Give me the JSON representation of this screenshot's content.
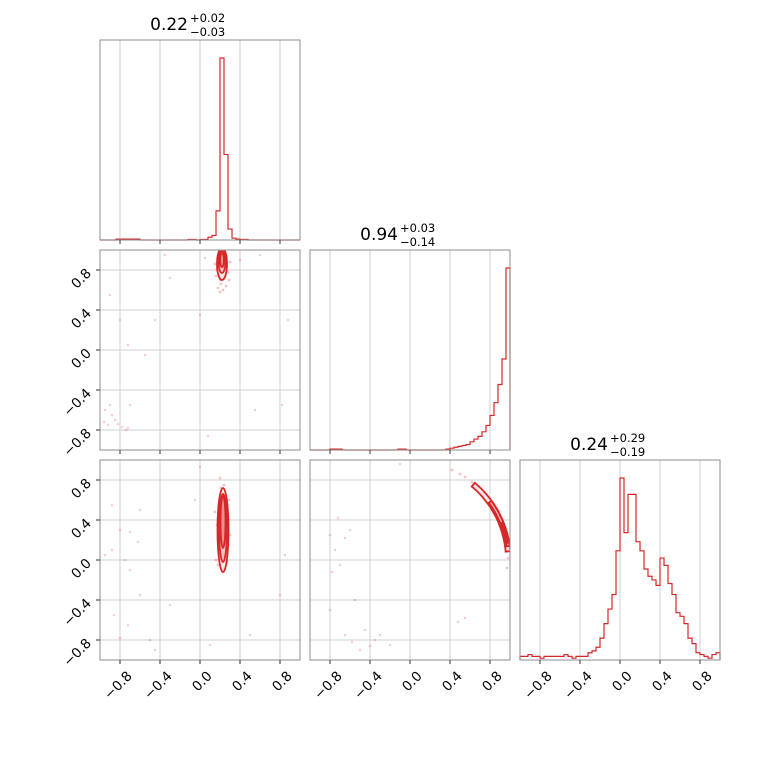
{
  "chart_data": {
    "type": "corner",
    "color": "#d62728",
    "axis_range": [
      -1.0,
      1.0
    ],
    "ticks": [
      -0.8,
      -0.4,
      0.0,
      0.4,
      0.8
    ],
    "tick_labels": [
      "−0.8",
      "−0.4",
      "0.0",
      "0.4",
      "0.8"
    ],
    "grid": true,
    "parameters": [
      {
        "median": "0.22",
        "plus": "+0.02",
        "minus": "−0.03"
      },
      {
        "median": "0.94",
        "plus": "+0.03",
        "minus": "−0.14"
      },
      {
        "median": "0.24",
        "plus": "+0.29",
        "minus": "−0.19"
      }
    ],
    "histograms": [
      {
        "bin_edges": [
          -1.0,
          -0.96,
          -0.92,
          -0.88,
          -0.84,
          -0.8,
          -0.76,
          -0.72,
          -0.68,
          -0.64,
          -0.6,
          -0.56,
          -0.52,
          -0.48,
          -0.44,
          -0.4,
          -0.36,
          -0.32,
          -0.28,
          -0.24,
          -0.2,
          -0.16,
          -0.12,
          -0.08,
          -0.04,
          0.0,
          0.04,
          0.08,
          0.12,
          0.16,
          0.2,
          0.24,
          0.28,
          0.32,
          0.36,
          0.4,
          0.44,
          0.48,
          0.52,
          0.56,
          0.6,
          0.64,
          0.68,
          0.72,
          0.76,
          0.8,
          0.84,
          0.88,
          0.92,
          0.96,
          1.0
        ],
        "counts": [
          0,
          0,
          0,
          0,
          0.005,
          0.005,
          0.005,
          0.005,
          0.005,
          0.005,
          0,
          0,
          0,
          0,
          0,
          0,
          0,
          0,
          0,
          0,
          0,
          0,
          0.003,
          0.003,
          0,
          0.003,
          0.003,
          0.015,
          0.025,
          0.16,
          1.0,
          0.47,
          0.06,
          0.01,
          0.005,
          0.003,
          0.003,
          0,
          0,
          0,
          0,
          0,
          0,
          0,
          0,
          0,
          0,
          0,
          0,
          0
        ]
      },
      {
        "bin_edges": [
          -1.0,
          -0.96,
          -0.92,
          -0.88,
          -0.84,
          -0.8,
          -0.76,
          -0.72,
          -0.68,
          -0.64,
          -0.6,
          -0.56,
          -0.52,
          -0.48,
          -0.44,
          -0.4,
          -0.36,
          -0.32,
          -0.28,
          -0.24,
          -0.2,
          -0.16,
          -0.12,
          -0.08,
          -0.04,
          0.0,
          0.04,
          0.08,
          0.12,
          0.16,
          0.2,
          0.24,
          0.28,
          0.32,
          0.36,
          0.4,
          0.44,
          0.48,
          0.52,
          0.56,
          0.6,
          0.64,
          0.68,
          0.72,
          0.76,
          0.8,
          0.84,
          0.88,
          0.92,
          0.96,
          1.0
        ],
        "counts": [
          0,
          0,
          0,
          0,
          0,
          0.005,
          0.005,
          0.005,
          0,
          0,
          0,
          0,
          0,
          0,
          0,
          0,
          0,
          0,
          0,
          0,
          0,
          0,
          0.005,
          0.005,
          0,
          0,
          0,
          0,
          0,
          0,
          0,
          0,
          0,
          0,
          0.005,
          0.01,
          0.015,
          0.02,
          0.025,
          0.03,
          0.045,
          0.06,
          0.075,
          0.1,
          0.135,
          0.19,
          0.26,
          0.36,
          0.5,
          1.0
        ]
      },
      {
        "bin_edges": [
          -1.0,
          -0.96,
          -0.92,
          -0.88,
          -0.84,
          -0.8,
          -0.76,
          -0.72,
          -0.68,
          -0.64,
          -0.6,
          -0.56,
          -0.52,
          -0.48,
          -0.44,
          -0.4,
          -0.36,
          -0.32,
          -0.28,
          -0.24,
          -0.2,
          -0.16,
          -0.12,
          -0.08,
          -0.04,
          0.0,
          0.04,
          0.08,
          0.12,
          0.16,
          0.2,
          0.24,
          0.28,
          0.32,
          0.36,
          0.4,
          0.44,
          0.48,
          0.52,
          0.56,
          0.6,
          0.64,
          0.68,
          0.72,
          0.76,
          0.8,
          0.84,
          0.88,
          0.92,
          0.96,
          1.0
        ],
        "counts": [
          0.02,
          0.02,
          0.03,
          0.02,
          0.02,
          0.01,
          0.02,
          0.02,
          0.02,
          0.02,
          0.02,
          0.03,
          0.02,
          0.01,
          0.02,
          0.02,
          0.02,
          0.04,
          0.05,
          0.07,
          0.12,
          0.2,
          0.28,
          0.36,
          0.6,
          1.0,
          0.7,
          0.91,
          0.91,
          0.65,
          0.6,
          0.5,
          0.46,
          0.44,
          0.41,
          0.56,
          0.52,
          0.42,
          0.36,
          0.26,
          0.24,
          0.2,
          0.12,
          0.09,
          0.04,
          0.03,
          0.02,
          0.01,
          0.03,
          0.04
        ]
      }
    ],
    "joint_panels": [
      {
        "x_param": 0,
        "y_param": 1,
        "contours": [
          {
            "cx": 0.22,
            "cy": 0.86,
            "rx": 0.05,
            "ry": 0.16,
            "level": 1
          },
          {
            "cx": 0.22,
            "cy": 0.88,
            "rx": 0.035,
            "ry": 0.11,
            "level": 2
          },
          {
            "cx": 0.22,
            "cy": 0.9,
            "rx": 0.02,
            "ry": 0.07,
            "level": 3
          }
        ],
        "core_samples": [
          [
            0.18,
            0.62
          ],
          [
            0.26,
            0.64
          ],
          [
            0.17,
            0.8
          ],
          [
            0.28,
            0.78
          ],
          [
            0.2,
            0.7
          ],
          [
            0.24,
            0.72
          ],
          [
            0.19,
            0.92
          ],
          [
            0.27,
            0.94
          ],
          [
            0.15,
            0.86
          ],
          [
            0.3,
            0.88
          ],
          [
            0.21,
            0.66
          ],
          [
            0.25,
            0.96
          ],
          [
            0.16,
            0.74
          ],
          [
            0.29,
            0.7
          ],
          [
            0.23,
            0.6
          ],
          [
            0.2,
            0.58
          ]
        ],
        "outlier_samples": [
          [
            -0.95,
            -0.6
          ],
          [
            -0.92,
            -0.75
          ],
          [
            -0.88,
            -0.65
          ],
          [
            -0.85,
            -0.7
          ],
          [
            -0.82,
            -0.74
          ],
          [
            -0.78,
            -0.77
          ],
          [
            -0.74,
            -0.8
          ],
          [
            -0.72,
            -0.78
          ],
          [
            -0.9,
            -0.55
          ],
          [
            -0.96,
            -0.72
          ],
          [
            -0.35,
            0.95
          ],
          [
            -0.3,
            0.72
          ],
          [
            -0.8,
            0.3
          ],
          [
            -0.72,
            0.05
          ],
          [
            -0.9,
            0.55
          ],
          [
            0.05,
            0.92
          ],
          [
            0.08,
            -0.86
          ],
          [
            0.55,
            -0.6
          ],
          [
            0.82,
            -0.55
          ],
          [
            0.0,
            0.35
          ],
          [
            -0.45,
            0.3
          ],
          [
            -0.55,
            -0.05
          ],
          [
            0.6,
            0.95
          ],
          [
            0.4,
            0.9
          ],
          [
            -0.7,
            -0.55
          ],
          [
            0.88,
            0.3
          ]
        ]
      },
      {
        "x_param": 0,
        "y_param": 2,
        "contours": [
          {
            "cx": 0.23,
            "cy": 0.3,
            "rx": 0.055,
            "ry": 0.42,
            "level": 1
          },
          {
            "cx": 0.23,
            "cy": 0.32,
            "rx": 0.04,
            "ry": 0.34,
            "level": 2
          },
          {
            "cx": 0.23,
            "cy": 0.38,
            "rx": 0.025,
            "ry": 0.26,
            "level": 3
          }
        ],
        "core_samples": [
          [
            0.18,
            -0.05
          ],
          [
            0.27,
            -0.02
          ],
          [
            0.2,
            0.1
          ],
          [
            0.25,
            0.2
          ],
          [
            0.17,
            0.35
          ],
          [
            0.28,
            0.4
          ],
          [
            0.19,
            0.55
          ],
          [
            0.26,
            0.62
          ],
          [
            0.21,
            0.72
          ],
          [
            0.24,
            0.75
          ],
          [
            0.16,
            0.0
          ],
          [
            0.3,
            0.25
          ],
          [
            0.22,
            -0.08
          ],
          [
            0.29,
            0.6
          ],
          [
            0.15,
            0.48
          ],
          [
            0.2,
            0.82
          ]
        ],
        "outlier_samples": [
          [
            -0.88,
            0.1
          ],
          [
            -0.8,
            0.3
          ],
          [
            -0.75,
            0.0
          ],
          [
            -0.7,
            0.28
          ],
          [
            -0.62,
            0.18
          ],
          [
            -0.6,
            -0.35
          ],
          [
            -0.86,
            -0.55
          ],
          [
            -0.8,
            -0.78
          ],
          [
            -0.72,
            -0.65
          ],
          [
            -0.5,
            -0.8
          ],
          [
            -0.45,
            -0.9
          ],
          [
            -0.88,
            0.55
          ],
          [
            -0.3,
            -0.45
          ],
          [
            0.1,
            -0.85
          ],
          [
            0.5,
            -0.75
          ],
          [
            0.8,
            -0.35
          ],
          [
            0.85,
            0.05
          ],
          [
            0.0,
            0.93
          ],
          [
            -0.05,
            0.6
          ],
          [
            -0.6,
            0.5
          ],
          [
            -0.95,
            0.05
          ],
          [
            -0.7,
            -0.1
          ]
        ]
      },
      {
        "x_param": 1,
        "y_param": 2,
        "contours": [],
        "arc_bands": [
          {
            "start_deg": 50,
            "end_deg": 5,
            "width": 0.04,
            "level": 1
          },
          {
            "start_deg": 36,
            "end_deg": 8,
            "width": 0.025,
            "level": 2
          },
          {
            "start_deg": 22,
            "end_deg": 10,
            "width": 0.015,
            "level": 3
          }
        ],
        "core_samples": [
          [
            0.62,
            0.78
          ],
          [
            0.68,
            0.72
          ],
          [
            0.74,
            0.66
          ],
          [
            0.8,
            0.58
          ],
          [
            0.86,
            0.5
          ],
          [
            0.9,
            0.42
          ],
          [
            0.94,
            0.3
          ],
          [
            0.96,
            0.2
          ],
          [
            0.97,
            0.1
          ],
          [
            0.98,
            0.02
          ],
          [
            0.97,
            -0.08
          ],
          [
            0.5,
            0.86
          ],
          [
            0.42,
            0.9
          ],
          [
            0.55,
            0.83
          ],
          [
            0.66,
            0.74
          ],
          [
            0.88,
            0.46
          ]
        ],
        "outlier_samples": [
          [
            -0.8,
            0.25
          ],
          [
            -0.75,
            0.1
          ],
          [
            -0.7,
            -0.05
          ],
          [
            -0.65,
            0.22
          ],
          [
            -0.6,
            0.3
          ],
          [
            -0.78,
            -0.12
          ],
          [
            -0.72,
            0.42
          ],
          [
            -0.65,
            -0.75
          ],
          [
            -0.58,
            -0.82
          ],
          [
            -0.5,
            -0.9
          ],
          [
            -0.35,
            -0.8
          ],
          [
            -0.4,
            -0.86
          ],
          [
            -0.3,
            -0.75
          ],
          [
            -0.2,
            -0.85
          ],
          [
            -0.45,
            -0.7
          ],
          [
            0.55,
            -0.58
          ],
          [
            0.48,
            -0.62
          ],
          [
            -0.1,
            0.96
          ],
          [
            -0.8,
            -0.5
          ],
          [
            -0.55,
            -0.4
          ]
        ]
      }
    ]
  }
}
